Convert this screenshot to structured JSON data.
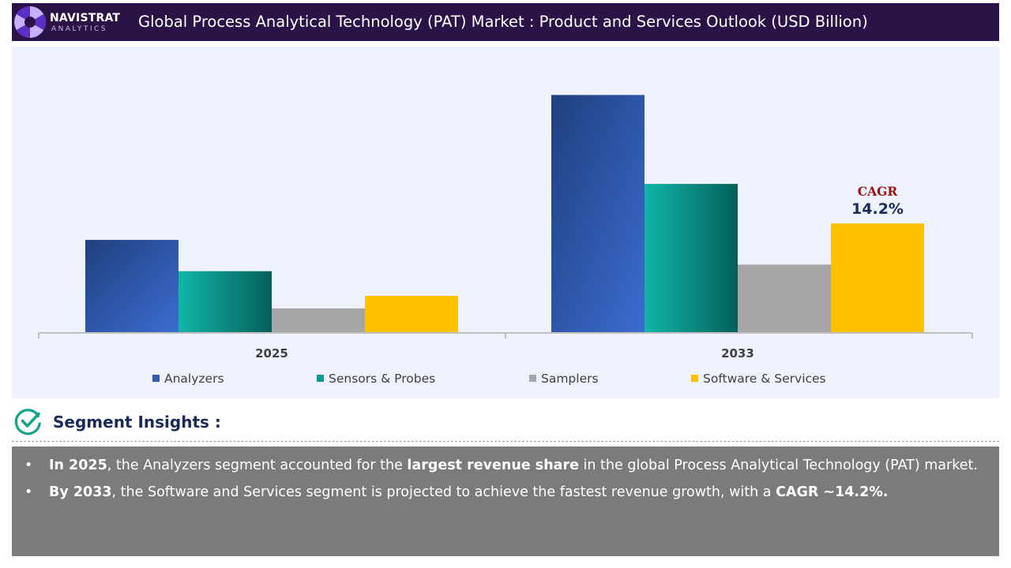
{
  "header": {
    "brand_name": "NAVISTRAT",
    "brand_sub": "ANALYTICS",
    "title": "Global Process Analytical Technology (PAT) Market : Product and Services Outlook (USD Billion)"
  },
  "colors": {
    "header_bg": "#2b1347",
    "panel_bg": "#eef2fc",
    "insight_bg": "#7b7b7b",
    "cagr_label": "#a01010",
    "cagr_value": "#1b2a5c"
  },
  "chart_data": {
    "type": "bar",
    "categories": [
      "2025",
      "2033"
    ],
    "series": [
      {
        "name": "Analyzers",
        "color": "#2f5cb0",
        "values": [
          2.8,
          7.2
        ]
      },
      {
        "name": "Sensors & Probes",
        "color": "#0c9b93",
        "values": [
          1.85,
          4.5
        ]
      },
      {
        "name": "Samplers",
        "color": "#a6a6a6",
        "values": [
          0.72,
          2.05
        ]
      },
      {
        "name": "Software & Services",
        "color": "#ffc000",
        "values": [
          1.1,
          3.3
        ]
      }
    ],
    "ylim": [
      0,
      8
    ],
    "legend_position": "bottom",
    "grid": false,
    "annotation": {
      "label": "CAGR",
      "value": "14.2%",
      "series": "Software & Services",
      "category": "2033"
    }
  },
  "insights": {
    "title": "Segment Insights :",
    "bullets": [
      {
        "parts": [
          {
            "text": "In 2025",
            "bold": true
          },
          {
            "text": ", the Analyzers segment accounted for the ",
            "bold": false
          },
          {
            "text": "largest revenue share",
            "bold": true
          },
          {
            "text": " in the global Process Analytical Technology (PAT) market.",
            "bold": false
          }
        ]
      },
      {
        "parts": [
          {
            "text": "By 2033",
            "bold": true
          },
          {
            "text": ", the Software and Services segment is projected to achieve the fastest revenue growth, with a ",
            "bold": false
          },
          {
            "text": "CAGR ~14.2%.",
            "bold": true
          }
        ]
      }
    ]
  }
}
